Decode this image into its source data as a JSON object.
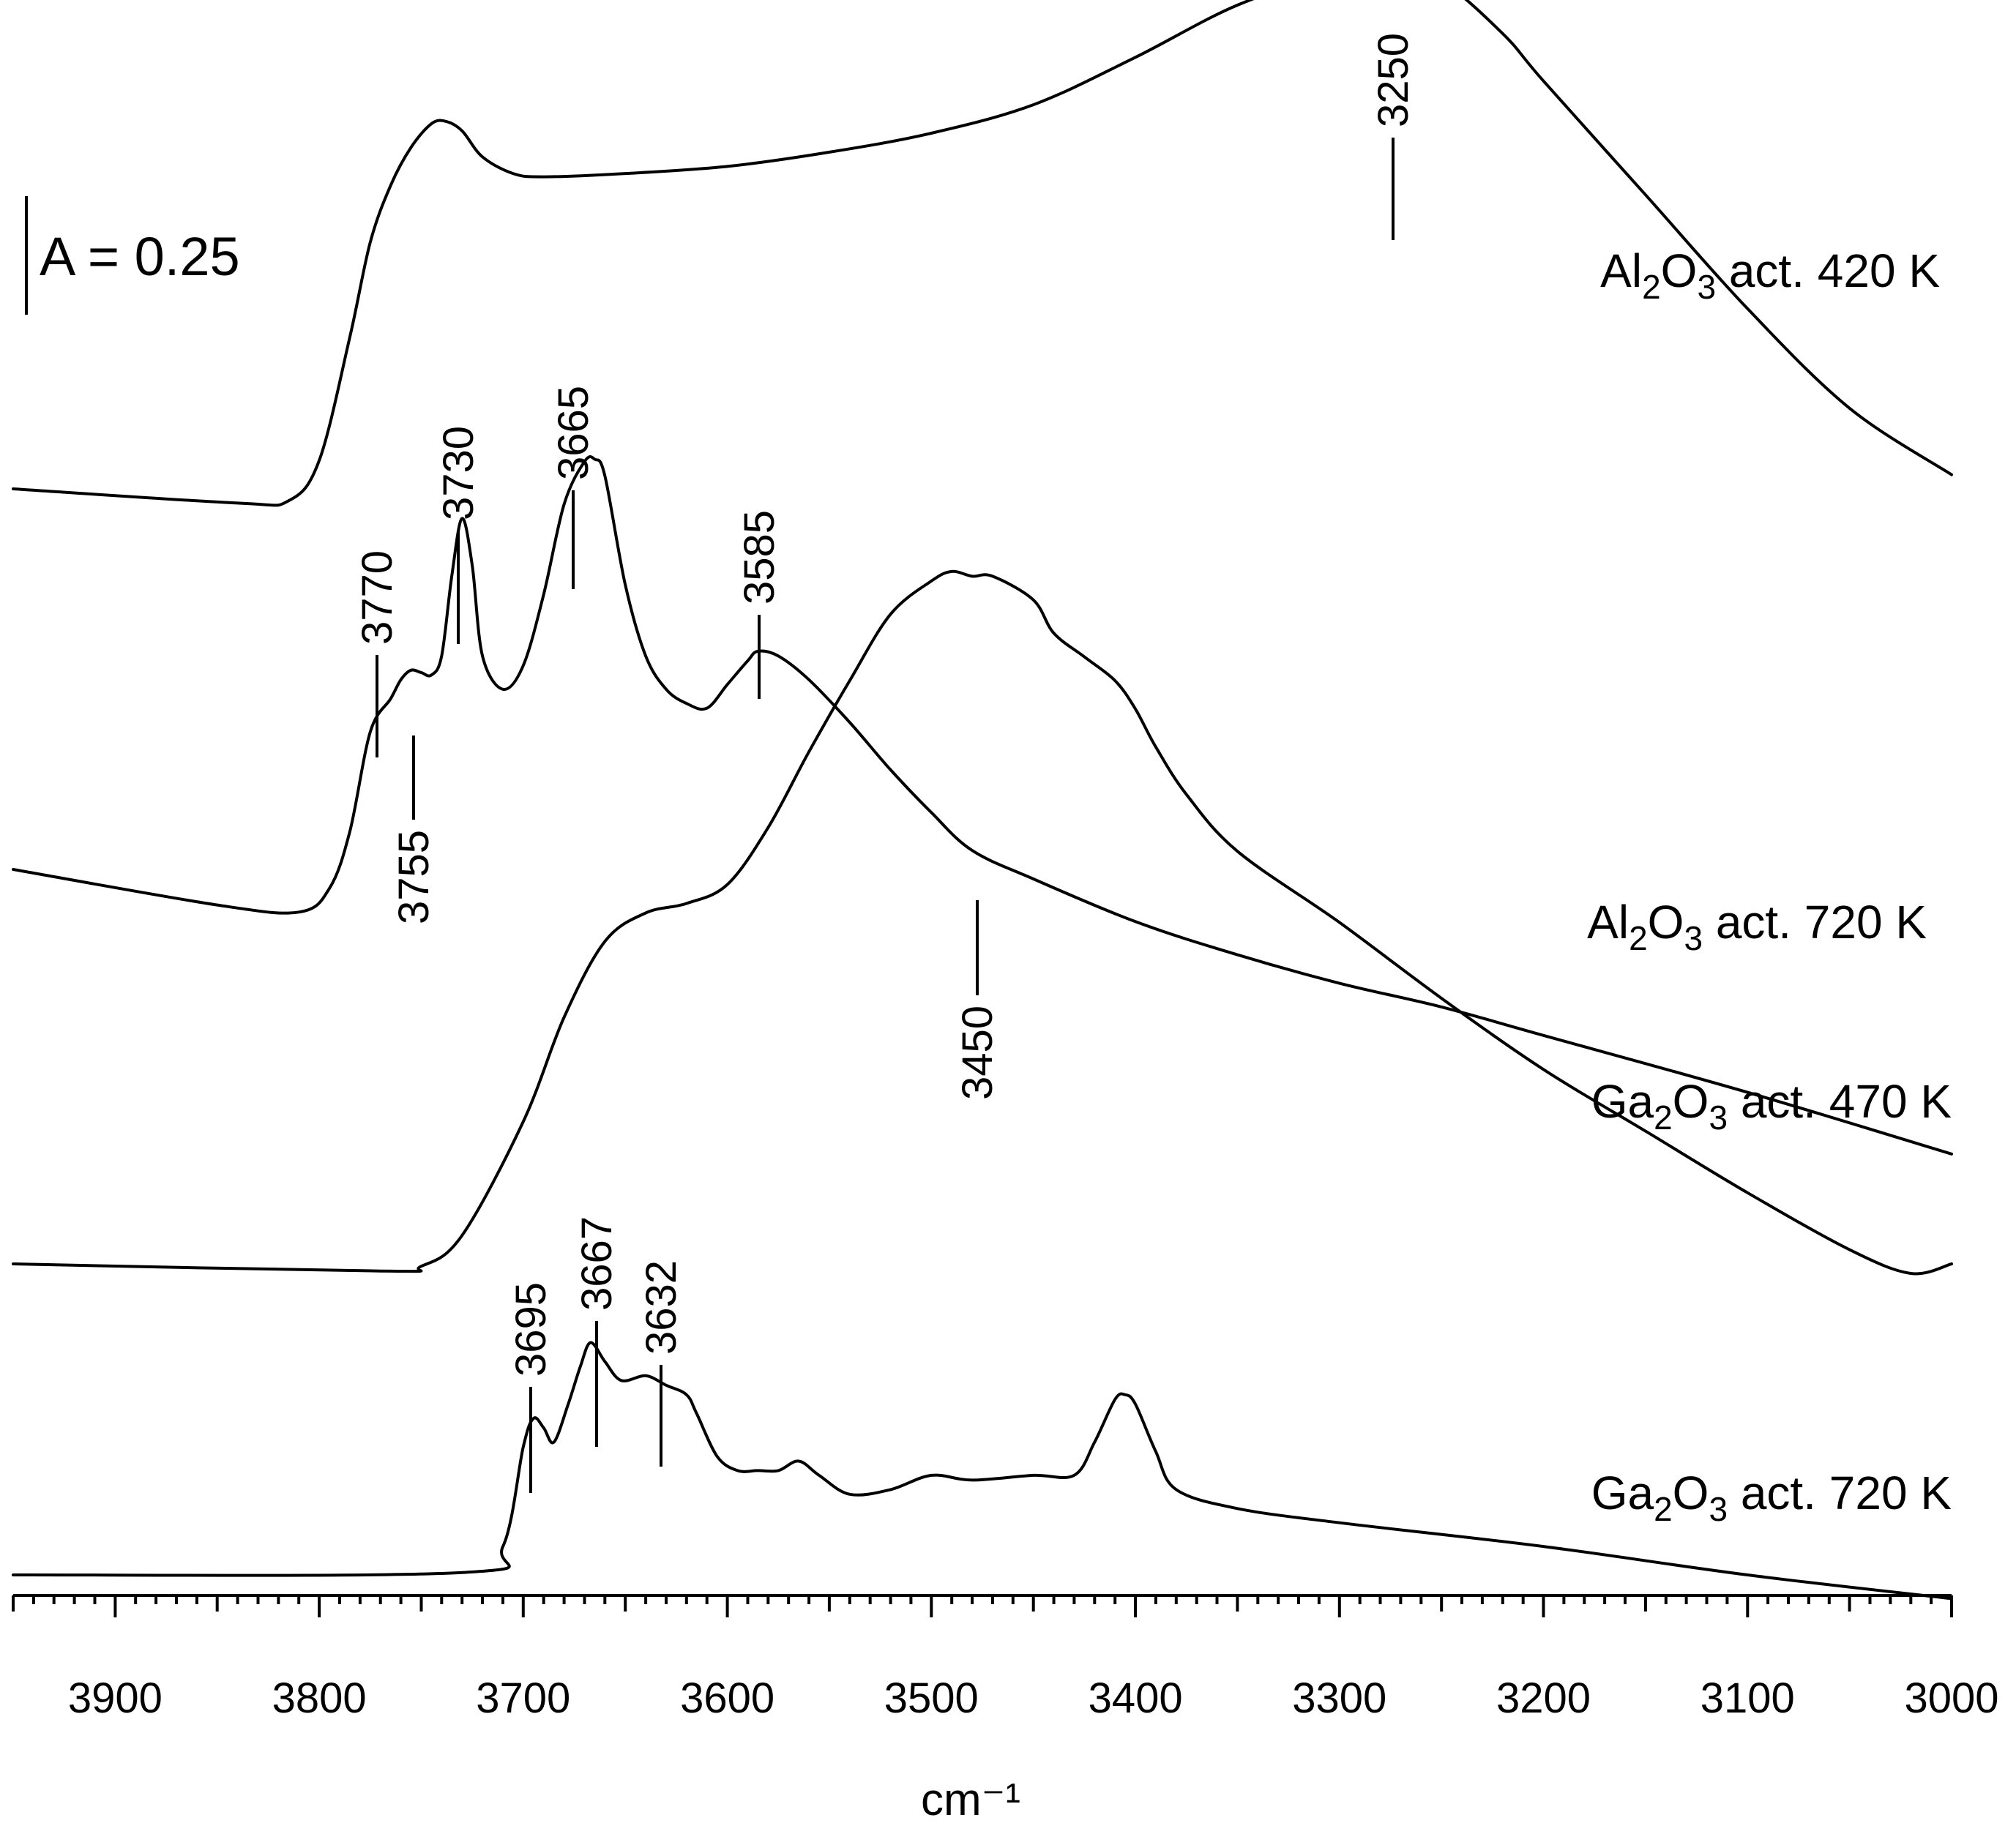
{
  "chart_data": {
    "type": "line",
    "title": "",
    "xlabel": "cm⁻¹",
    "ylabel": "",
    "xlim": [
      3950,
      3000
    ],
    "x_reversed": true,
    "grid": false,
    "x_ticks": [
      "3900",
      "3800",
      "3700",
      "3600",
      "3500",
      "3400",
      "3300",
      "3200",
      "3100",
      "3000"
    ],
    "scale_bar_label": "A = 0.25",
    "scale_bar_value": 0.25,
    "series": [
      {
        "name": "Al2O3 act. 420 K",
        "label_main": "Al",
        "label_sub1": "2",
        "label_mid": "O",
        "label_sub2": "3",
        "label_tail": " act. 420 K",
        "x": [
          3950,
          3840,
          3815,
          3800,
          3785,
          3775,
          3765,
          3755,
          3745,
          3738,
          3730,
          3720,
          3705,
          3690,
          3650,
          3600,
          3550,
          3500,
          3450,
          3400,
          3350,
          3300,
          3275,
          3250,
          3220,
          3200,
          3150,
          3100,
          3050,
          3000
        ],
        "y": [
          0.0,
          -0.03,
          -0.025,
          0.06,
          0.32,
          0.52,
          0.64,
          0.72,
          0.77,
          0.775,
          0.755,
          0.7,
          0.665,
          0.658,
          0.665,
          0.68,
          0.71,
          0.75,
          0.81,
          0.91,
          1.02,
          1.09,
          1.095,
          1.07,
          0.96,
          0.86,
          0.62,
          0.38,
          0.17,
          0.03
        ],
        "peaks": [
          "3250"
        ]
      },
      {
        "name": "Al2O3 act. 720 K",
        "label_main": "Al",
        "label_sub1": "2",
        "label_mid": "O",
        "label_sub2": "3",
        "label_tail": " act. 720 K",
        "x": [
          3950,
          3850,
          3810,
          3795,
          3785,
          3775,
          3765,
          3760,
          3755,
          3750,
          3745,
          3740,
          3735,
          3730,
          3725,
          3720,
          3710,
          3700,
          3690,
          3680,
          3670,
          3665,
          3660,
          3650,
          3640,
          3630,
          3620,
          3610,
          3600,
          3590,
          3585,
          3575,
          3560,
          3540,
          3520,
          3500,
          3480,
          3450,
          3400,
          3350,
          3300,
          3250,
          3200,
          3100,
          3000
        ],
        "y": [
          0.0,
          -0.075,
          -0.09,
          -0.04,
          0.08,
          0.29,
          0.36,
          0.4,
          0.42,
          0.415,
          0.41,
          0.45,
          0.62,
          0.74,
          0.64,
          0.45,
          0.38,
          0.43,
          0.58,
          0.77,
          0.86,
          0.865,
          0.83,
          0.6,
          0.45,
          0.38,
          0.35,
          0.34,
          0.39,
          0.44,
          0.46,
          0.45,
          0.4,
          0.31,
          0.21,
          0.12,
          0.04,
          -0.02,
          -0.11,
          -0.18,
          -0.24,
          -0.29,
          -0.35,
          -0.47,
          -0.6
        ],
        "peaks": [
          "3770",
          "3755",
          "3730",
          "3665",
          "3585"
        ]
      },
      {
        "name": "Ga2O3 act. 470 K",
        "label_main": "Ga",
        "label_sub1": "2",
        "label_mid": "O",
        "label_sub2": "3",
        "label_tail": " act. 470 K",
        "x": [
          3950,
          3770,
          3750,
          3730,
          3700,
          3680,
          3660,
          3640,
          3620,
          3600,
          3580,
          3560,
          3540,
          3520,
          3500,
          3490,
          3480,
          3470,
          3450,
          3440,
          3425,
          3410,
          3400,
          3390,
          3375,
          3350,
          3300,
          3250,
          3200,
          3150,
          3100,
          3050,
          3020,
          3000
        ],
        "y": [
          0.0,
          -0.015,
          -0.005,
          0.06,
          0.3,
          0.52,
          0.68,
          0.74,
          0.76,
          0.8,
          0.92,
          1.08,
          1.23,
          1.37,
          1.44,
          1.46,
          1.45,
          1.45,
          1.4,
          1.33,
          1.28,
          1.23,
          1.17,
          1.09,
          0.99,
          0.87,
          0.72,
          0.56,
          0.41,
          0.28,
          0.15,
          0.03,
          -0.02,
          0.0
        ],
        "peaks": [
          "3450"
        ]
      },
      {
        "name": "Ga2O3 act. 720 K",
        "label_main": "Ga",
        "label_sub1": "2",
        "label_mid": "O",
        "label_sub2": "3",
        "label_tail": " act. 720 K",
        "x": [
          3950,
          3730,
          3710,
          3700,
          3695,
          3690,
          3685,
          3678,
          3672,
          3667,
          3660,
          3652,
          3640,
          3630,
          3620,
          3615,
          3605,
          3595,
          3585,
          3575,
          3565,
          3555,
          3540,
          3520,
          3500,
          3480,
          3450,
          3430,
          3420,
          3410,
          3405,
          3400,
          3390,
          3380,
          3350,
          3300,
          3200,
          3100,
          3000
        ],
        "y": [
          0.0,
          0.005,
          0.06,
          0.27,
          0.33,
          0.31,
          0.28,
          0.36,
          0.44,
          0.49,
          0.45,
          0.41,
          0.42,
          0.4,
          0.38,
          0.34,
          0.25,
          0.22,
          0.22,
          0.22,
          0.24,
          0.21,
          0.17,
          0.18,
          0.21,
          0.2,
          0.21,
          0.21,
          0.28,
          0.37,
          0.38,
          0.36,
          0.26,
          0.18,
          0.14,
          0.11,
          0.06,
          0.0,
          -0.05
        ],
        "peaks": [
          "3695",
          "3667",
          "3632"
        ]
      }
    ]
  }
}
